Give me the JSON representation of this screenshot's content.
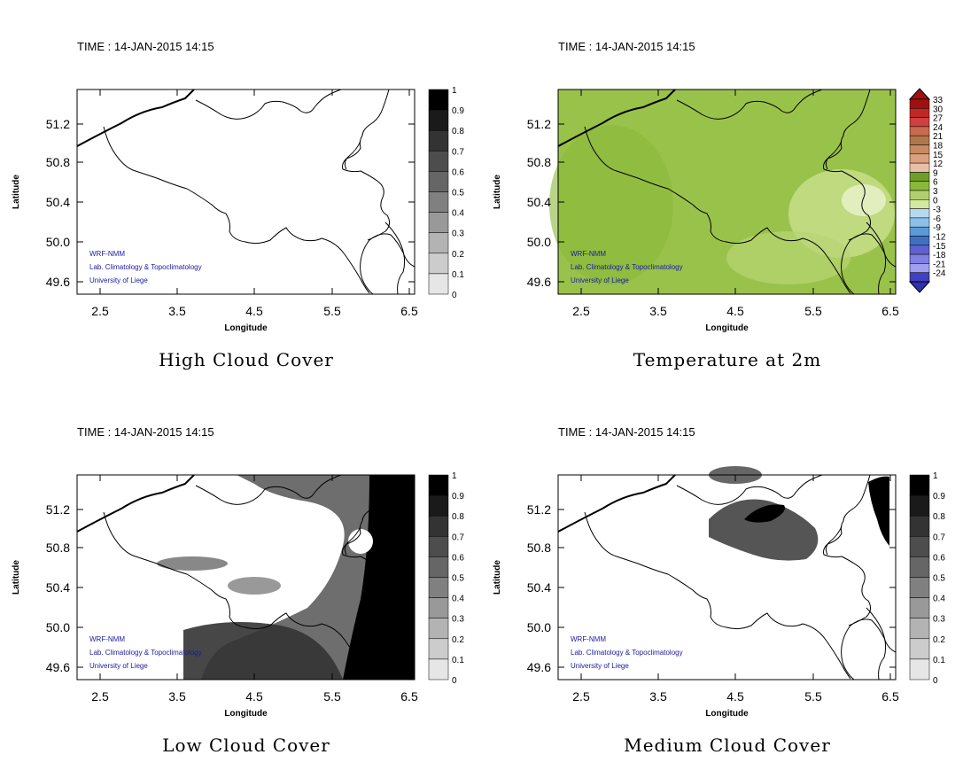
{
  "panels": [
    {
      "time_label": "TIME : 14-JAN-2015 14:15",
      "title": "High Cloud Cover",
      "xlabel": "Longitude",
      "ylabel": "Latitude",
      "x_ticks": [
        "2.5",
        "3.5",
        "4.5",
        "5.5",
        "6.5"
      ],
      "y_ticks": [
        "51.2",
        "50.8",
        "50.4",
        "50.0",
        "49.6"
      ],
      "colorbar_labels": [
        "1",
        "0.9",
        "0.8",
        "0.7",
        "0.6",
        "0.5",
        "0.4",
        "0.3",
        "0.2",
        "0.1",
        "0"
      ],
      "credits": [
        "WRF-NMM",
        "Lab. Climatology & Topoclimatology",
        "University of Liege"
      ],
      "field": "none"
    },
    {
      "time_label": "TIME : 14-JAN-2015 14:15",
      "title": "Temperature at 2m",
      "xlabel": "Longitude",
      "ylabel": "Latitude",
      "x_ticks": [
        "2.5",
        "3.5",
        "4.5",
        "5.5",
        "6.5"
      ],
      "y_ticks": [
        "51.2",
        "50.8",
        "50.4",
        "50.0",
        "49.6"
      ],
      "colorbar_labels": [
        "33",
        "30",
        "27",
        "24",
        "21",
        "18",
        "15",
        "12",
        "9",
        "6",
        "3",
        "0",
        "-3",
        "-6",
        "-9",
        "-12",
        "-15",
        "-18",
        "-21",
        "-24"
      ],
      "credits": [
        "WRF-NMM",
        "Lab. Climatology & Topoclimatology",
        "University of Liege"
      ],
      "field": "temperature"
    },
    {
      "time_label": "TIME : 14-JAN-2015 14:15",
      "title": "Low Cloud Cover",
      "xlabel": "Longitude",
      "ylabel": "Latitude",
      "x_ticks": [
        "2.5",
        "3.5",
        "4.5",
        "5.5",
        "6.5"
      ],
      "y_ticks": [
        "51.2",
        "50.8",
        "50.4",
        "50.0",
        "49.6"
      ],
      "colorbar_labels": [
        "1",
        "0.9",
        "0.8",
        "0.7",
        "0.6",
        "0.5",
        "0.4",
        "0.3",
        "0.2",
        "0.1",
        "0"
      ],
      "credits": [
        "WRF-NMM",
        "Lab. Climatology & Topoclimatology",
        "University of Liege"
      ],
      "field": "low"
    },
    {
      "time_label": "TIME : 14-JAN-2015 14:15",
      "title": "Medium Cloud Cover",
      "xlabel": "Longitude",
      "ylabel": "Latitude",
      "x_ticks": [
        "2.5",
        "3.5",
        "4.5",
        "5.5",
        "6.5"
      ],
      "y_ticks": [
        "51.2",
        "50.8",
        "50.4",
        "50.0",
        "49.6"
      ],
      "colorbar_labels": [
        "1",
        "0.9",
        "0.8",
        "0.7",
        "0.6",
        "0.5",
        "0.4",
        "0.3",
        "0.2",
        "0.1",
        "0"
      ],
      "credits": [
        "WRF-NMM",
        "Lab. Climatology & Topoclimatology",
        "University of Liege"
      ],
      "field": "medium"
    }
  ],
  "colors": {
    "cloud_scale": [
      "#000000",
      "#1a1a1a",
      "#333333",
      "#4d4d4d",
      "#666666",
      "#808080",
      "#999999",
      "#b3b3b3",
      "#cccccc",
      "#e6e6e6",
      "#ffffff"
    ],
    "temp_scale": [
      "#a01010",
      "#c02828",
      "#d04040",
      "#c86a50",
      "#b07848",
      "#c88a60",
      "#dca080",
      "#e8c0a8",
      "#6e9e2a",
      "#8ab83a",
      "#b0d070",
      "#d4e8a0",
      "#b8d8f0",
      "#8cc0e8",
      "#5a9ad8",
      "#4070c0",
      "#6060d0",
      "#8080e0",
      "#a0a0f0",
      "#4040c0"
    ],
    "temp_field_base": "#99c24a"
  }
}
